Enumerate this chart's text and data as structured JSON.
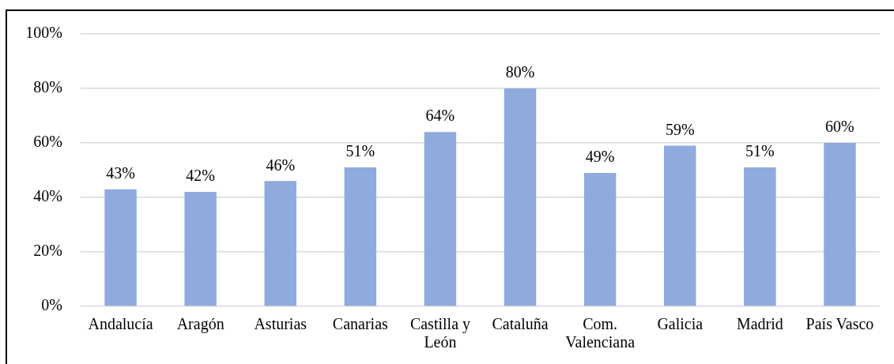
{
  "chart_data": {
    "type": "bar",
    "categories": [
      "Andalucía",
      "Aragón",
      "Asturias",
      "Canarias",
      "Castilla y León",
      "Cataluña",
      "Com. Valenciana",
      "Galicia",
      "Madrid",
      "País Vasco"
    ],
    "values": [
      43,
      42,
      46,
      51,
      64,
      80,
      49,
      59,
      51,
      60
    ],
    "color": "#8faadc",
    "value_labels": [
      "43%",
      "42%",
      "46%",
      "51%",
      "64%",
      "80%",
      "49%",
      "59%",
      "51%",
      "60%"
    ],
    "ylim": [
      0,
      100
    ],
    "yticks": [
      {
        "value": 0,
        "label": "0%"
      },
      {
        "value": 20,
        "label": "20%"
      },
      {
        "value": 40,
        "label": "40%"
      },
      {
        "value": 60,
        "label": "60%"
      },
      {
        "value": 80,
        "label": "80%"
      },
      {
        "value": 100,
        "label": "100%"
      }
    ],
    "grid": "y"
  }
}
